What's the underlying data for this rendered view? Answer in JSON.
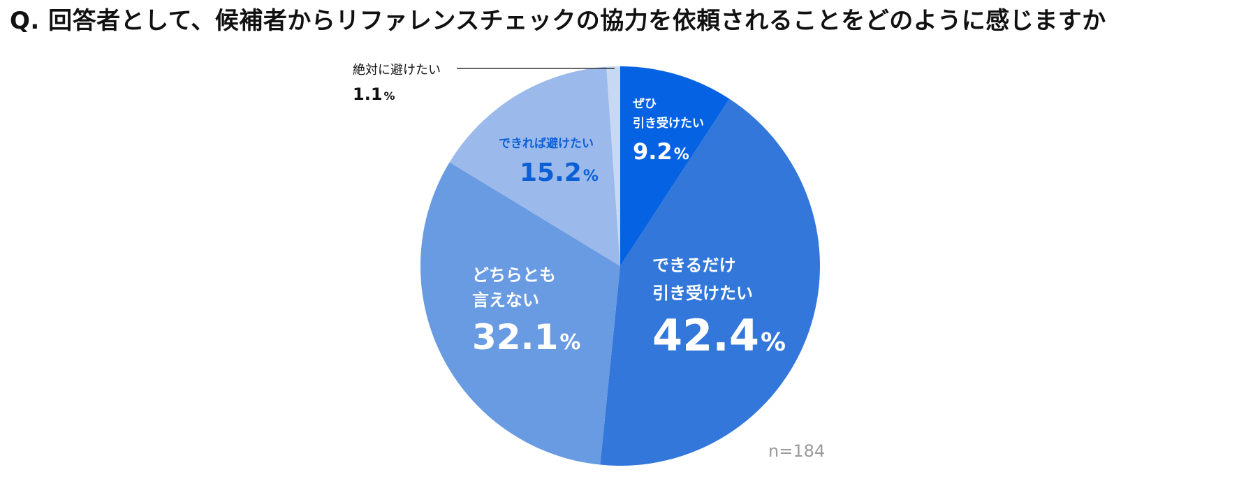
{
  "title": "Q. 回答者として、候補者からリファレンスチェックの協力を依頼されることをどのように感じますか",
  "sample_note": "n=184",
  "colors": {
    "slice_1": "#0462e3",
    "slice_2": "#3277d9",
    "slice_3": "#699be3",
    "slice_4": "#9bbaeb",
    "slice_5": "#c7d8f3",
    "label_light": "#ffffff",
    "label_blue": "#0b5fd6",
    "label_dark": "#111111",
    "note_gray": "#9a9a9a",
    "leader_line": "#333333"
  },
  "chart_data": {
    "type": "pie",
    "title": "Q. 回答者として、候補者からリファレンスチェックの協力を依頼されることをどのように感じますか",
    "start": "12 o'clock",
    "direction": "clockwise",
    "unit": "%",
    "slices": [
      {
        "label_lines": [
          "ぜひ",
          "引き受けたい"
        ],
        "value": 9.2,
        "display": "9.2",
        "color": "#0462e3"
      },
      {
        "label_lines": [
          "できるだけ",
          "引き受けたい"
        ],
        "value": 42.4,
        "display": "42.4",
        "color": "#3277d9"
      },
      {
        "label_lines": [
          "どちらとも",
          "言えない"
        ],
        "value": 32.1,
        "display": "32.1",
        "color": "#699be3"
      },
      {
        "label_lines": [
          "できれば避けたい"
        ],
        "value": 15.2,
        "display": "15.2",
        "color": "#9bbaeb"
      },
      {
        "label_lines": [
          "絶対に避けたい"
        ],
        "value": 1.1,
        "display": "1.1",
        "color": "#c7d8f3"
      }
    ],
    "annotation": "n=184"
  }
}
